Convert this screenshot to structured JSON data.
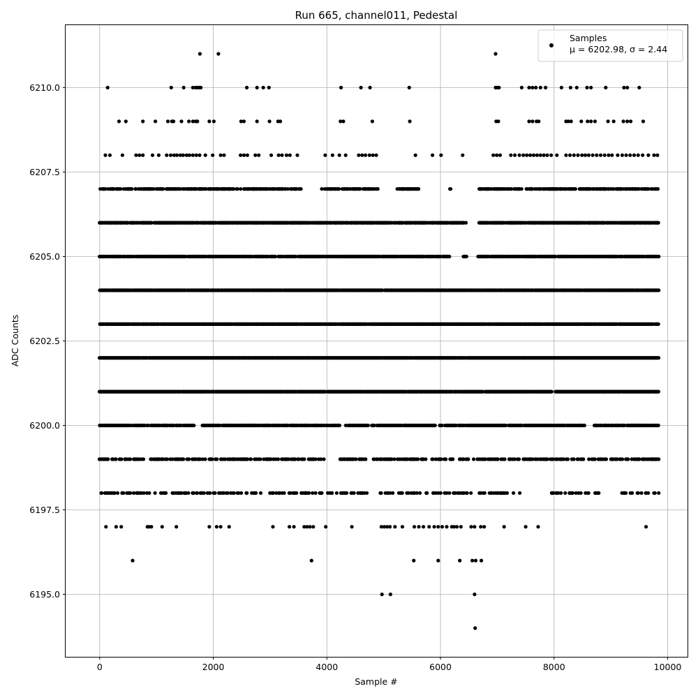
{
  "chart_data": {
    "type": "scatter",
    "title": "Run 665, channel011, Pedestal",
    "xlabel": "Sample #",
    "ylabel": "ADC Counts",
    "xlim": [
      -600,
      10350
    ],
    "ylim": [
      6193.15,
      6211.85
    ],
    "x_ticks": [
      0,
      2000,
      4000,
      6000,
      8000,
      10000
    ],
    "x_tick_labels": [
      "0",
      "2000",
      "4000",
      "6000",
      "8000",
      "10000"
    ],
    "y_ticks": [
      6195.0,
      6197.5,
      6200.0,
      6202.5,
      6205.0,
      6207.5,
      6210.0
    ],
    "y_tick_labels": [
      "6195.0",
      "6197.5",
      "6200.0",
      "6202.5",
      "6205.0",
      "6207.5",
      "6210.0"
    ],
    "grid": true,
    "legend_position": "top-right",
    "series": [
      {
        "name": "Samples",
        "color": "#000000",
        "marker": "circle",
        "x_range": [
          0,
          9850
        ],
        "levels": [
          {
            "y": 6211,
            "x": [
              1765,
              2090,
              6970
            ]
          },
          {
            "y": 6210,
            "x": [
              140,
              1260,
              1480,
              1640,
              1690,
              1720,
              1750,
              1780,
              2590,
              2770,
              2880,
              2980,
              4250,
              4600,
              4760,
              5450,
              6970,
              7000,
              7030,
              7430,
              7560,
              7620,
              7680,
              7760,
              7850,
              8130,
              8290,
              8400,
              8580,
              8650,
              8910,
              9230,
              9290,
              9500
            ]
          },
          {
            "y": 6209,
            "x": [
              340,
              460,
              760,
              980,
              1200,
              1270,
              1300,
              1440,
              1570,
              1640,
              1690,
              1720,
              1930,
              2010,
              2490,
              2540,
              2770,
              2990,
              3140,
              3180,
              4240,
              4290,
              4800,
              5460,
              6980,
              7020,
              7560,
              7620,
              7690,
              7730,
              8210,
              8250,
              8300,
              8480,
              8590,
              8650,
              8720,
              8950,
              9050,
              9220,
              9290,
              9350,
              9570
            ]
          },
          {
            "y": 6208,
            "x": [
              100,
              180,
              400,
              640,
              700,
              760,
              930,
              1040,
              1180,
              1250,
              1310,
              1360,
              1420,
              1470,
              1530,
              1580,
              1640,
              1700,
              1760,
              1860,
              1990,
              2130,
              2190,
              2480,
              2540,
              2600,
              2740,
              2800,
              3020,
              3150,
              3210,
              3290,
              3350,
              3480,
              3970,
              4100,
              4220,
              4330,
              4560,
              4620,
              4680,
              4750,
              4810,
              4870,
              5560,
              5860,
              6010,
              6390,
              6930,
              6990,
              7050,
              7240,
              7310,
              7390,
              7460,
              7520,
              7580,
              7640,
              7700,
              7760,
              7820,
              7880,
              7950,
              8050,
              8210,
              8280,
              8350,
              8420,
              8490,
              8550,
              8610,
              8680,
              8750,
              8820,
              8890,
              8960,
              9020,
              9120,
              9200,
              9270,
              9340,
              9410,
              9480,
              9560,
              9660,
              9760,
              9820
            ]
          },
          {
            "y": 6197,
            "x": [
              110,
              290,
              380,
              840,
              870,
              910,
              1100,
              1350,
              1930,
              2060,
              2130,
              2280,
              3050,
              3340,
              3420,
              3600,
              3650,
              3700,
              3760,
              3980,
              4440,
              4960,
              5010,
              5060,
              5110,
              5200,
              5330,
              5540,
              5620,
              5700,
              5800,
              5890,
              5960,
              6030,
              6110,
              6200,
              6240,
              6290,
              6360,
              6540,
              6600,
              6710,
              6770,
              7120,
              7500,
              7720,
              9620
            ]
          },
          {
            "y": 6196,
            "x": [
              580,
              3730,
              5530,
              5960,
              6340,
              6560,
              6620,
              6720
            ]
          },
          {
            "y": 6195,
            "x": [
              4970,
              5120,
              6600
            ]
          },
          {
            "y": 6194,
            "x": [
              6610
            ]
          }
        ],
        "bands": [
          {
            "y": 6207,
            "density": 0.65,
            "gaps": [
              [
                3560,
                3880
              ],
              [
                4900,
                5230
              ],
              [
                5620,
                6150
              ],
              [
                6200,
                6680
              ]
            ]
          },
          {
            "y": 6206,
            "density": 0.82,
            "gaps": [
              [
                6450,
                6660
              ]
            ]
          },
          {
            "y": 6205,
            "density": 0.8,
            "gaps": [
              [
                6160,
                6400
              ],
              [
                6460,
                6650
              ]
            ]
          },
          {
            "y": 6204,
            "density": 0.95,
            "gaps": []
          },
          {
            "y": 6203,
            "density": 0.97,
            "gaps": []
          },
          {
            "y": 6202,
            "density": 0.99,
            "gaps": []
          },
          {
            "y": 6201,
            "density": 0.95,
            "gaps": [
              [
                7960,
                8020
              ]
            ]
          },
          {
            "y": 6200,
            "density": 0.72,
            "gaps": [
              [
                1660,
                1810
              ],
              [
                4240,
                4320
              ],
              [
                8550,
                8700
              ]
            ]
          },
          {
            "y": 6199,
            "density": 0.45,
            "gaps": [
              [
                3980,
                4230
              ],
              [
                7010,
                7060
              ]
            ]
          },
          {
            "y": 6198,
            "density": 0.3,
            "gaps": [
              [
                1170,
                1270
              ],
              [
                4720,
                4870
              ],
              [
                7400,
                7940
              ],
              [
                8820,
                9160
              ]
            ]
          }
        ]
      }
    ],
    "legend_entries": [
      {
        "label": "Samples",
        "stats": "μ = 6202.98, σ = 2.44"
      }
    ]
  }
}
